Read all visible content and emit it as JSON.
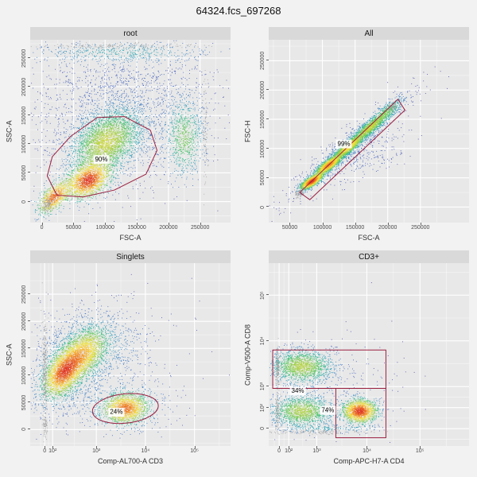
{
  "title": "64324.fcs_697268",
  "colors": {
    "page_bg": "#f2f2f2",
    "panel_bg": "#e8e8e8",
    "strip_bg": "#d9d9d9",
    "grid_major": "#ffffff",
    "gate": "#9b1f40",
    "gate_label_bg": "#ffffff",
    "outlier_gray": "#9b9b9b"
  },
  "colormap": [
    "#4944a6",
    "#3f63c0",
    "#3287c4",
    "#27a8b0",
    "#35bd7c",
    "#7ccb4e",
    "#c4d63c",
    "#f2e33c",
    "#f7b32b",
    "#ee7621",
    "#e03423"
  ],
  "chart_data": {
    "type": "scatter",
    "subtype": "flow-cytometry-density-facets",
    "title": "64324.fcs_697268",
    "panels": [
      {
        "strip": "root",
        "xlabel": "FSC-A",
        "ylabel": "SSC-A",
        "xticks": [
          {
            "label": "0",
            "f": 0.058
          },
          {
            "label": "50000",
            "f": 0.216
          },
          {
            "label": "100000",
            "f": 0.374
          },
          {
            "label": "150000",
            "f": 0.532
          },
          {
            "label": "200000",
            "f": 0.69
          },
          {
            "label": "250000",
            "f": 0.848
          }
        ],
        "yticks": [
          {
            "label": "0",
            "f": 0.115
          },
          {
            "label": "50000",
            "f": 0.272
          },
          {
            "label": "100000",
            "f": 0.429
          },
          {
            "label": "150000",
            "f": 0.586
          },
          {
            "label": "200000",
            "f": 0.743
          },
          {
            "label": "250000",
            "f": 0.9
          }
        ],
        "clusters": [
          {
            "cx": 0.38,
            "cy": 0.44,
            "sx": 0.085,
            "sy": 0.085,
            "rho": 0.35,
            "n": 2600,
            "w": 3.0
          },
          {
            "cx": 0.29,
            "cy": 0.23,
            "sx": 0.055,
            "sy": 0.05,
            "rho": 0.35,
            "n": 1500,
            "w": 3.6
          },
          {
            "cx": 0.46,
            "cy": 0.6,
            "sx": 0.24,
            "sy": 0.2,
            "rho": 0.05,
            "n": 2400,
            "w": 0.28
          },
          {
            "cx": 0.77,
            "cy": 0.46,
            "sx": 0.045,
            "sy": 0.1,
            "rho": 0,
            "n": 650,
            "w": 1.1
          },
          {
            "cx": 0.12,
            "cy": 0.14,
            "sx": 0.04,
            "sy": 0.045,
            "rho": 0.55,
            "n": 700,
            "w": 2.0
          },
          {
            "cx": 0.45,
            "cy": 0.93,
            "sx": 0.22,
            "sy": 0.03,
            "rho": 0,
            "n": 420,
            "w": 0.5
          },
          {
            "cx": 0.45,
            "cy": 0.965,
            "sx": 0.2,
            "sy": 0.008,
            "rho": 0,
            "n": 160,
            "color": "#9b9b9b"
          },
          {
            "cx": 0.875,
            "cy": 0.5,
            "sx": 0.006,
            "sy": 0.18,
            "rho": 0,
            "n": 90,
            "color": "#9b9b9b"
          },
          {
            "cx": 0.085,
            "cy": 0.1,
            "sx": 0.015,
            "sy": 0.02,
            "rho": 0,
            "n": 130,
            "color": "#9b9b9b"
          }
        ],
        "gates": [
          {
            "type": "polygon",
            "label": "90%",
            "label_at": [
              0.355,
              0.345
            ],
            "points": [
              [
                0.133,
                0.15
              ],
              [
                0.085,
                0.255
              ],
              [
                0.11,
                0.36
              ],
              [
                0.2,
                0.47
              ],
              [
                0.335,
                0.575
              ],
              [
                0.47,
                0.58
              ],
              [
                0.6,
                0.505
              ],
              [
                0.633,
                0.395
              ],
              [
                0.578,
                0.265
              ],
              [
                0.42,
                0.178
              ],
              [
                0.265,
                0.14
              ]
            ]
          }
        ]
      },
      {
        "strip": "All",
        "xlabel": "FSC-A",
        "ylabel": "FSC-H",
        "xticks": [
          {
            "label": "50000",
            "f": 0.105
          },
          {
            "label": "100000",
            "f": 0.268
          },
          {
            "label": "150000",
            "f": 0.431
          },
          {
            "label": "200000",
            "f": 0.594
          },
          {
            "label": "250000",
            "f": 0.757
          }
        ],
        "yticks": [
          {
            "label": "0",
            "f": 0.085
          },
          {
            "label": "50000",
            "f": 0.245
          },
          {
            "label": "100000",
            "f": 0.405
          },
          {
            "label": "150000",
            "f": 0.565
          },
          {
            "label": "200000",
            "f": 0.725
          },
          {
            "label": "250000",
            "f": 0.885
          }
        ],
        "clusters": [
          {
            "cx": 0.215,
            "cy": 0.225,
            "sx": 0.028,
            "sy": 0.022,
            "rho": 0.75,
            "n": 1100,
            "w": 3.2
          },
          {
            "cx": 0.3,
            "cy": 0.315,
            "sx": 0.032,
            "sy": 0.027,
            "rho": 0.8,
            "n": 1400,
            "w": 3.4
          },
          {
            "cx": 0.4,
            "cy": 0.415,
            "sx": 0.036,
            "sy": 0.032,
            "rho": 0.82,
            "n": 1300,
            "w": 3.0
          },
          {
            "cx": 0.5,
            "cy": 0.515,
            "sx": 0.04,
            "sy": 0.036,
            "rho": 0.82,
            "n": 950,
            "w": 2.2
          },
          {
            "cx": 0.585,
            "cy": 0.6,
            "sx": 0.042,
            "sy": 0.04,
            "rho": 0.8,
            "n": 520,
            "w": 1.5
          },
          {
            "cx": 0.4,
            "cy": 0.41,
            "sx": 0.15,
            "sy": 0.145,
            "rho": 0.93,
            "n": 800,
            "w": 0.35
          },
          {
            "cx": 0.47,
            "cy": 0.36,
            "sx": 0.12,
            "sy": 0.09,
            "rho": 0.55,
            "n": 220,
            "w": 0.18
          },
          {
            "cx": 0.155,
            "cy": 0.16,
            "sx": 0.012,
            "sy": 0.014,
            "rho": 0.3,
            "n": 90,
            "color": "#9b9b9b"
          },
          {
            "cx": 0.615,
            "cy": 0.63,
            "sx": 0.012,
            "sy": 0.012,
            "rho": 0.3,
            "n": 70,
            "color": "#9b9b9b"
          }
        ],
        "gates": [
          {
            "type": "polygon",
            "label": "99%",
            "label_at": [
              0.375,
              0.43
            ],
            "points": [
              [
                0.155,
                0.165
              ],
              [
                0.205,
                0.125
              ],
              [
                0.68,
                0.615
              ],
              [
                0.645,
                0.675
              ]
            ]
          }
        ]
      },
      {
        "strip": "Singlets",
        "xlabel": "Comp-AL700-A CD3",
        "ylabel": "SSC-A",
        "xticks": [
          {
            "label": "0",
            "f": 0.072
          },
          {
            "label": "10²",
            "f": 0.112
          },
          {
            "label": "10³",
            "f": 0.33
          },
          {
            "label": "10⁴",
            "f": 0.575
          },
          {
            "label": "10⁵",
            "f": 0.82
          }
        ],
        "yticks": [
          {
            "label": "0",
            "f": 0.09
          },
          {
            "label": "50000",
            "f": 0.238
          },
          {
            "label": "100000",
            "f": 0.386
          },
          {
            "label": "150000",
            "f": 0.534
          },
          {
            "label": "200000",
            "f": 0.682
          },
          {
            "label": "250000",
            "f": 0.83
          }
        ],
        "clusters": [
          {
            "cx": 0.165,
            "cy": 0.4,
            "sx": 0.05,
            "sy": 0.065,
            "rho": 0.45,
            "n": 1600,
            "w": 3.6
          },
          {
            "cx": 0.26,
            "cy": 0.5,
            "sx": 0.06,
            "sy": 0.07,
            "rho": 0.45,
            "n": 1500,
            "w": 3.0
          },
          {
            "cx": 0.21,
            "cy": 0.45,
            "sx": 0.12,
            "sy": 0.15,
            "rho": 0.35,
            "n": 1600,
            "w": 0.45
          },
          {
            "cx": 0.475,
            "cy": 0.205,
            "sx": 0.055,
            "sy": 0.04,
            "rho": 0.05,
            "n": 1200,
            "w": 2.2
          },
          {
            "cx": 0.48,
            "cy": 0.21,
            "sx": 0.1,
            "sy": 0.065,
            "rho": 0.05,
            "n": 380,
            "w": 0.4
          },
          {
            "cx": 0.38,
            "cy": 0.55,
            "sx": 0.1,
            "sy": 0.08,
            "rho": 0,
            "n": 280,
            "w": 0.2
          },
          {
            "cx": 0.42,
            "cy": 0.4,
            "sx": 0.2,
            "sy": 0.2,
            "rho": 0.1,
            "n": 300,
            "w": 0.15
          },
          {
            "cx": 0.073,
            "cy": 0.42,
            "sx": 0.006,
            "sy": 0.14,
            "rho": 0,
            "n": 300,
            "color": "#9b9b9b"
          },
          {
            "cx": 0.073,
            "cy": 0.11,
            "sx": 0.006,
            "sy": 0.025,
            "rho": 0,
            "n": 70,
            "color": "#9b9b9b"
          }
        ],
        "gates": [
          {
            "type": "ellipse",
            "label": "24%",
            "label_at": [
              0.43,
              0.185
            ],
            "cx": 0.475,
            "cy": 0.205,
            "rx": 0.165,
            "ry": 0.08,
            "rot": -6
          }
        ]
      },
      {
        "strip": "CD3+",
        "xlabel": "Comp-APC-H7-A CD4",
        "ylabel": "Comp-V500-A CD8",
        "xticks": [
          {
            "label": "0",
            "f": 0.052
          },
          {
            "label": "10²",
            "f": 0.1
          },
          {
            "label": "10³",
            "f": 0.24
          },
          {
            "label": "10⁴",
            "f": 0.49
          },
          {
            "label": "10⁵",
            "f": 0.755
          }
        ],
        "yticks": [
          {
            "label": "0",
            "f": 0.095
          },
          {
            "label": "10²",
            "f": 0.21
          },
          {
            "label": "10³",
            "f": 0.325
          },
          {
            "label": "10⁴",
            "f": 0.575
          },
          {
            "label": "10⁵",
            "f": 0.825
          }
        ],
        "clusters": [
          {
            "cx": 0.165,
            "cy": 0.435,
            "sx": 0.075,
            "sy": 0.045,
            "rho": 0,
            "n": 1500,
            "w": 2.2
          },
          {
            "cx": 0.165,
            "cy": 0.19,
            "sx": 0.075,
            "sy": 0.042,
            "rho": 0,
            "n": 1300,
            "w": 2.0
          },
          {
            "cx": 0.455,
            "cy": 0.19,
            "sx": 0.042,
            "sy": 0.032,
            "rho": 0,
            "n": 1400,
            "w": 3.2
          },
          {
            "cx": 0.3,
            "cy": 0.3,
            "sx": 0.17,
            "sy": 0.14,
            "rho": 0.1,
            "n": 380,
            "w": 0.15
          },
          {
            "cx": 0.3,
            "cy": 0.095,
            "sx": 0.12,
            "sy": 0.012,
            "rho": 0,
            "n": 160,
            "w": 0.15
          },
          {
            "cx": 0.045,
            "cy": 0.43,
            "sx": 0.006,
            "sy": 0.06,
            "rho": 0,
            "n": 160,
            "color": "#9b9b9b"
          },
          {
            "cx": 0.045,
            "cy": 0.19,
            "sx": 0.006,
            "sy": 0.05,
            "rho": 0,
            "n": 120,
            "color": "#9b9b9b"
          },
          {
            "cx": 0.25,
            "cy": 0.075,
            "sx": 0.13,
            "sy": 0.007,
            "rho": 0,
            "n": 130,
            "color": "#9b9b9b"
          }
        ],
        "gates": [
          {
            "type": "rect",
            "label": "34%",
            "label_at": [
              0.145,
              0.3
            ],
            "x0": 0.02,
            "y0": 0.315,
            "x1": 0.585,
            "y1": 0.525
          },
          {
            "type": "rect",
            "label": "74%",
            "label_at": [
              0.295,
              0.195
            ],
            "x0": 0.335,
            "y0": 0.045,
            "x1": 0.585,
            "y1": 0.315
          }
        ]
      }
    ]
  }
}
